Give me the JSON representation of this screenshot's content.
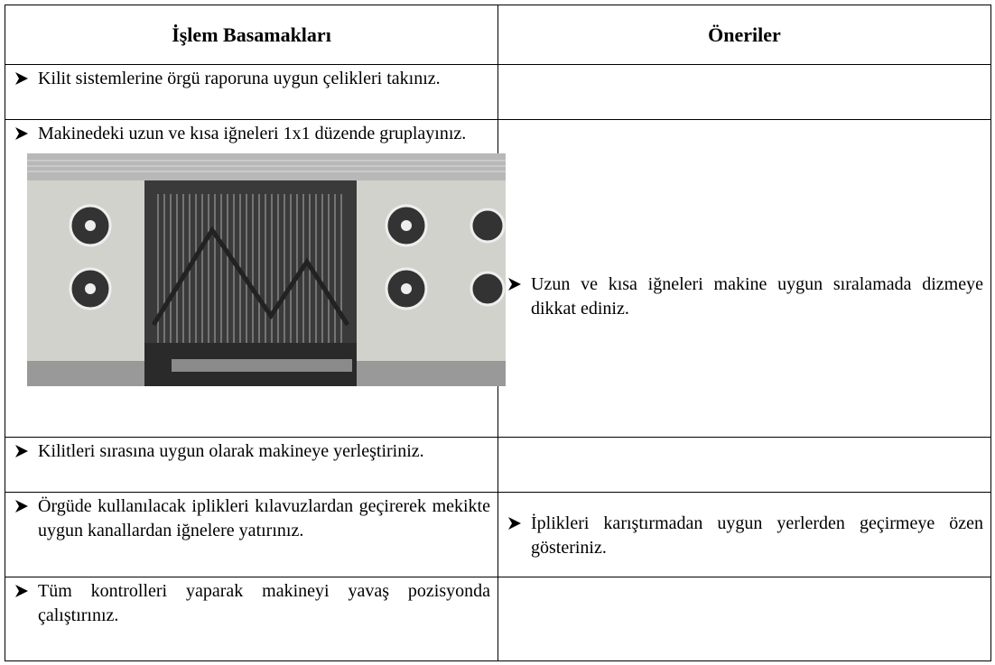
{
  "table": {
    "header": [
      "İşlem Basamakları",
      "Öneriler"
    ],
    "rows": [
      {
        "step": "Kilit sistemlerine örgü raporuna uygun çelikleri takınız."
      },
      {
        "step": "Makinedeki uzun ve kısa iğneleri 1x1 düzende gruplayınız.",
        "tip": "Uzun ve kısa iğneleri makine uygun sıralamada dizmeye dikkat ediniz."
      },
      {
        "step": "Kilitleri sırasına uygun olarak makineye yerleştiriniz."
      },
      {
        "step": "Örgüde kullanılacak iplikleri kılavuzlardan geçirerek mekikte uygun kanallardan iğnelere yatırınız.",
        "tip": "İplikleri karıştırmadan uygun yerlerden geçirmeye özen gösteriniz."
      },
      {
        "step": "Tüm kontrolleri yaparak makineyi yavaş pozisyonda çalıştırınız."
      }
    ]
  }
}
